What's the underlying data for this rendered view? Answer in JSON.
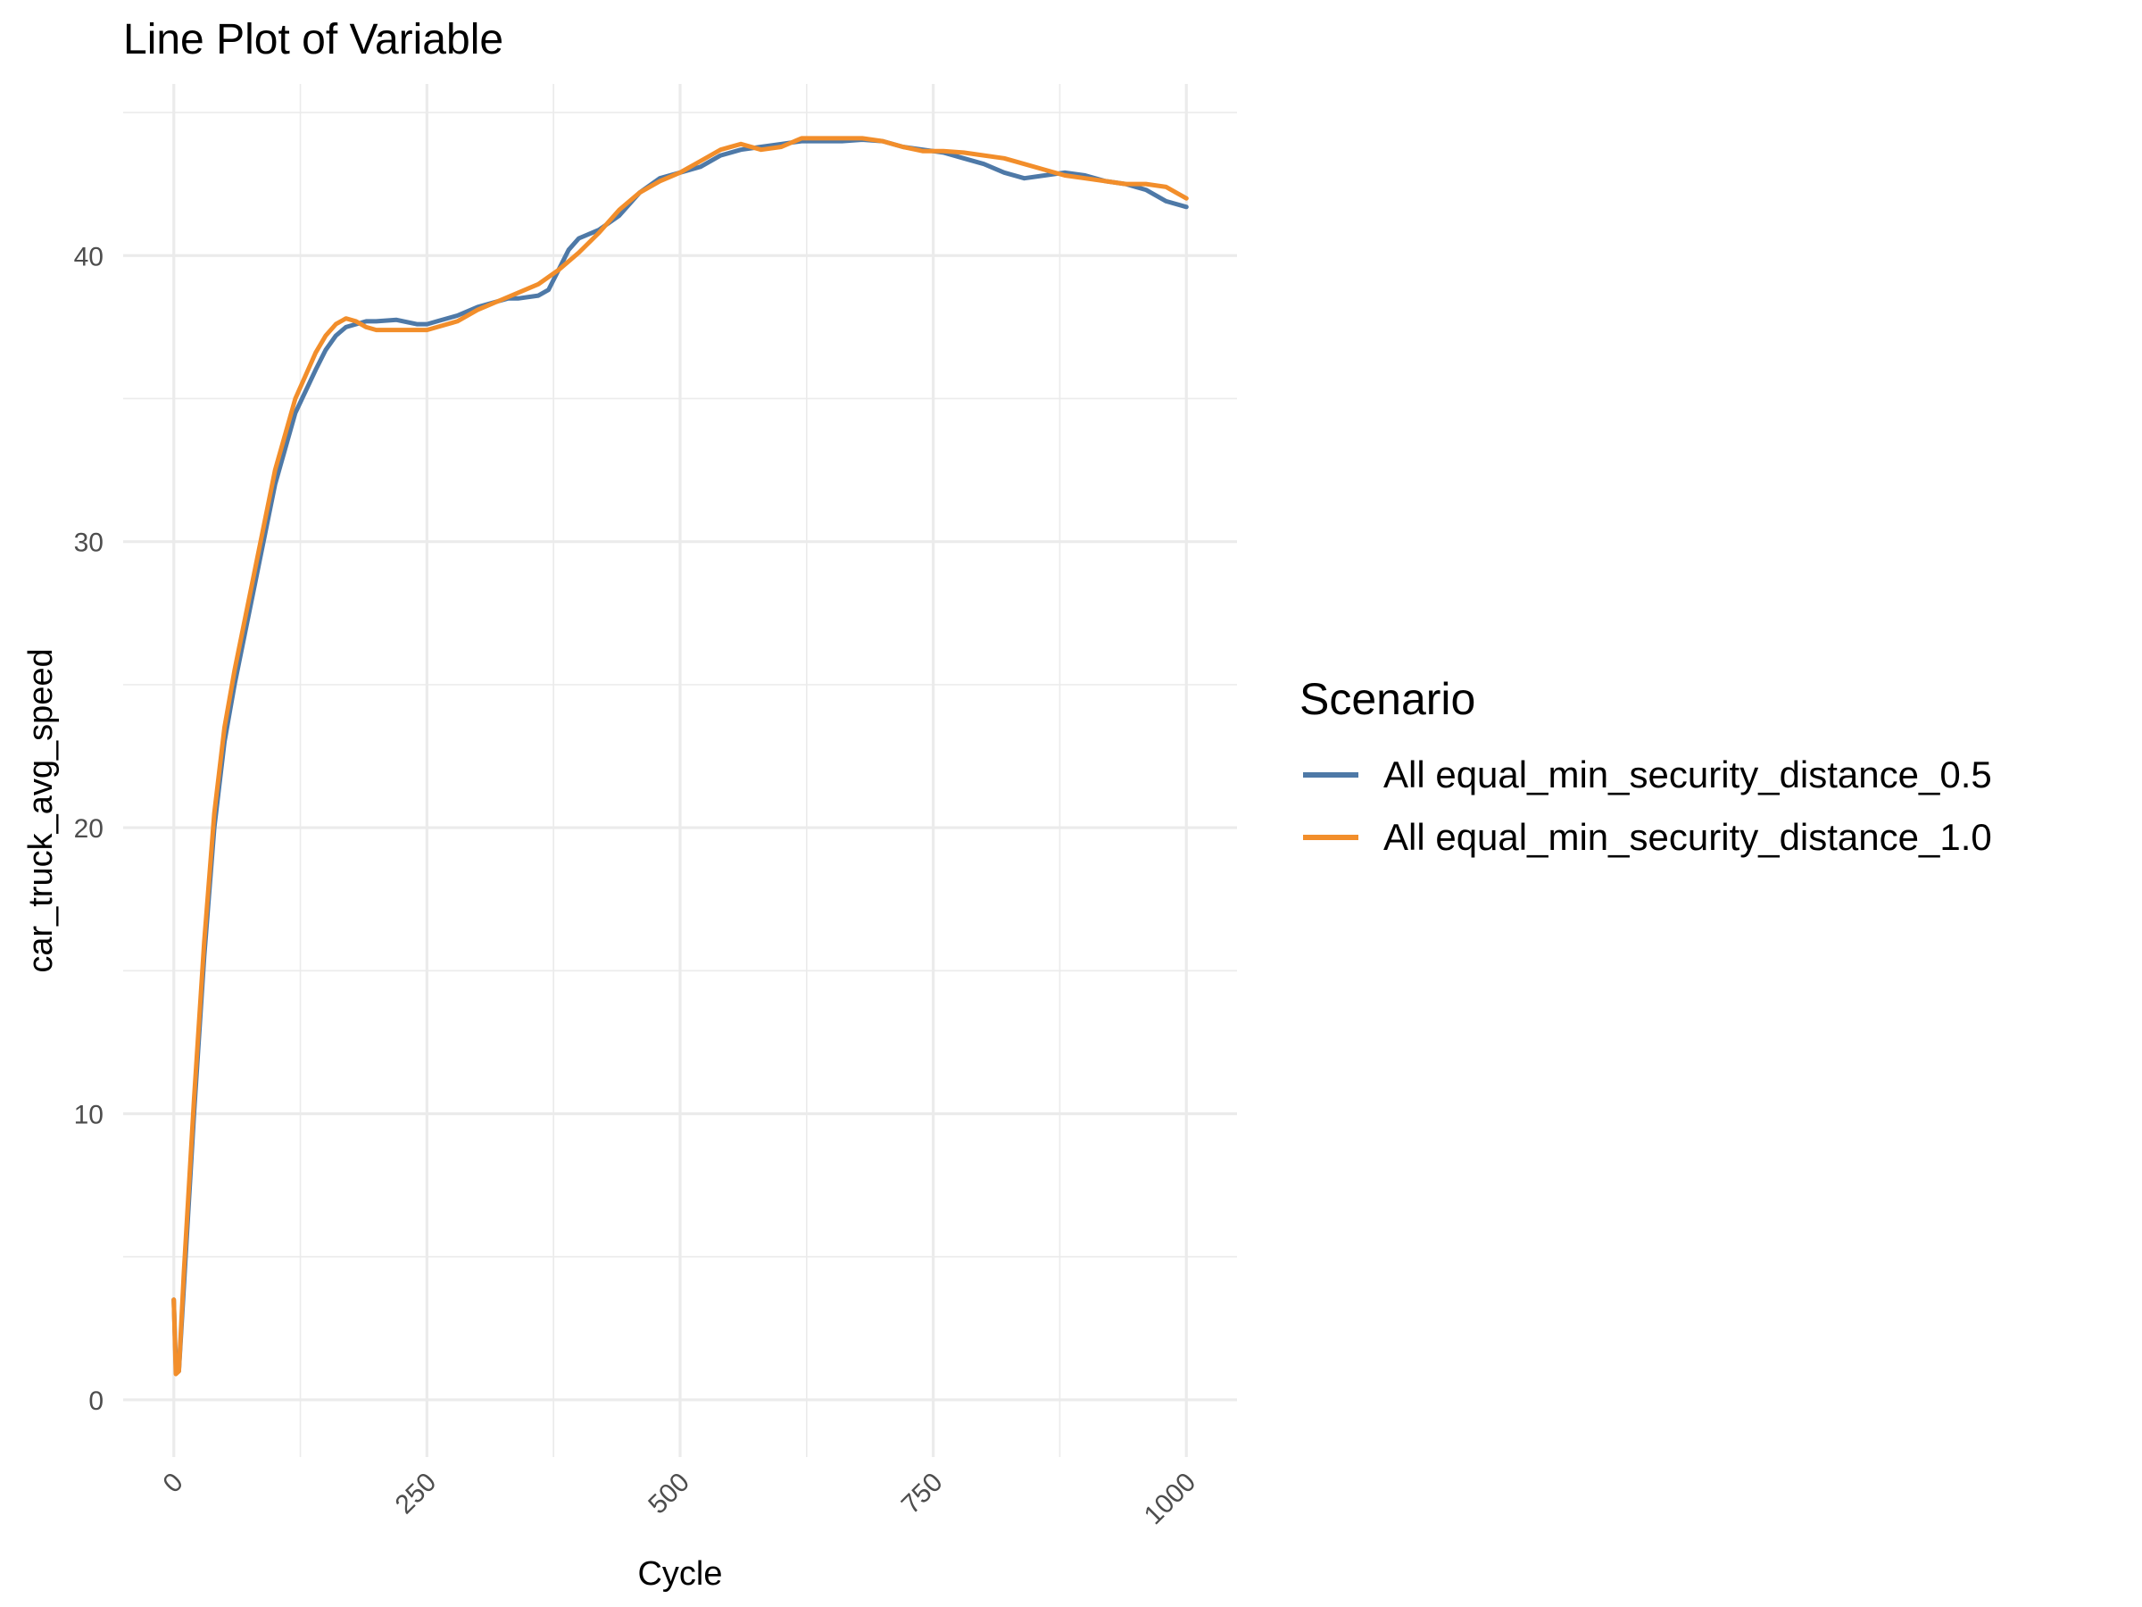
{
  "chart_data": {
    "type": "line",
    "title": "Line Plot of Variable",
    "xlabel": "Cycle",
    "ylabel": "car_truck_avg_speed",
    "xlim": [
      -50,
      1050
    ],
    "ylim": [
      -2,
      46
    ],
    "x_ticks": [
      0,
      250,
      500,
      750,
      1000
    ],
    "x_tick_labels": [
      "0",
      "250",
      "500",
      "750",
      "1000"
    ],
    "y_ticks": [
      0,
      10,
      20,
      30,
      40
    ],
    "y_tick_labels": [
      "0",
      "10",
      "20",
      "30",
      "40"
    ],
    "grid": true,
    "legend": {
      "title": "Scenario",
      "placement": "right"
    },
    "series": [
      {
        "name": "All equal_min_security_distance_0.5",
        "color": "#4e79a7",
        "x": [
          0,
          2,
          5,
          10,
          20,
          30,
          40,
          50,
          60,
          80,
          100,
          120,
          140,
          150,
          160,
          170,
          180,
          190,
          200,
          220,
          240,
          250,
          260,
          280,
          300,
          320,
          330,
          340,
          360,
          370,
          380,
          390,
          400,
          420,
          440,
          460,
          480,
          500,
          520,
          540,
          560,
          580,
          600,
          620,
          640,
          660,
          680,
          700,
          720,
          740,
          760,
          780,
          800,
          820,
          840,
          860,
          880,
          900,
          920,
          940,
          960,
          980,
          1000
        ],
        "y": [
          3.5,
          1.2,
          1.0,
          4.0,
          10.0,
          15.5,
          20.0,
          23.0,
          25.0,
          28.5,
          32.0,
          34.5,
          36.0,
          36.7,
          37.2,
          37.5,
          37.6,
          37.7,
          37.7,
          37.75,
          37.6,
          37.6,
          37.7,
          37.9,
          38.2,
          38.4,
          38.5,
          38.5,
          38.6,
          38.8,
          39.5,
          40.2,
          40.6,
          40.9,
          41.4,
          42.2,
          42.7,
          42.9,
          43.1,
          43.5,
          43.7,
          43.8,
          43.9,
          44.0,
          44.0,
          44.0,
          44.05,
          44.0,
          43.8,
          43.7,
          43.6,
          43.4,
          43.2,
          42.9,
          42.7,
          42.8,
          42.9,
          42.8,
          42.6,
          42.5,
          42.3,
          41.9,
          41.7
        ]
      },
      {
        "name": "All equal_min_security_distance_1.0",
        "color": "#f28e2b",
        "x": [
          0,
          2,
          5,
          10,
          20,
          30,
          40,
          50,
          60,
          80,
          100,
          120,
          140,
          150,
          160,
          170,
          180,
          190,
          200,
          220,
          240,
          250,
          260,
          280,
          300,
          320,
          340,
          360,
          380,
          400,
          420,
          440,
          460,
          480,
          500,
          520,
          540,
          560,
          580,
          600,
          620,
          640,
          660,
          680,
          700,
          720,
          740,
          760,
          780,
          800,
          820,
          840,
          860,
          880,
          900,
          920,
          940,
          960,
          980,
          1000
        ],
        "y": [
          3.5,
          0.9,
          1.0,
          4.5,
          10.5,
          16.0,
          20.5,
          23.5,
          25.5,
          29.0,
          32.5,
          35.0,
          36.6,
          37.2,
          37.6,
          37.8,
          37.7,
          37.5,
          37.4,
          37.4,
          37.4,
          37.4,
          37.5,
          37.7,
          38.1,
          38.4,
          38.7,
          39.0,
          39.5,
          40.1,
          40.8,
          41.6,
          42.2,
          42.6,
          42.9,
          43.3,
          43.7,
          43.9,
          43.7,
          43.8,
          44.1,
          44.1,
          44.1,
          44.1,
          44.0,
          43.8,
          43.65,
          43.65,
          43.6,
          43.5,
          43.4,
          43.2,
          43.0,
          42.8,
          42.7,
          42.6,
          42.5,
          42.5,
          42.4,
          42.0
        ]
      }
    ]
  }
}
